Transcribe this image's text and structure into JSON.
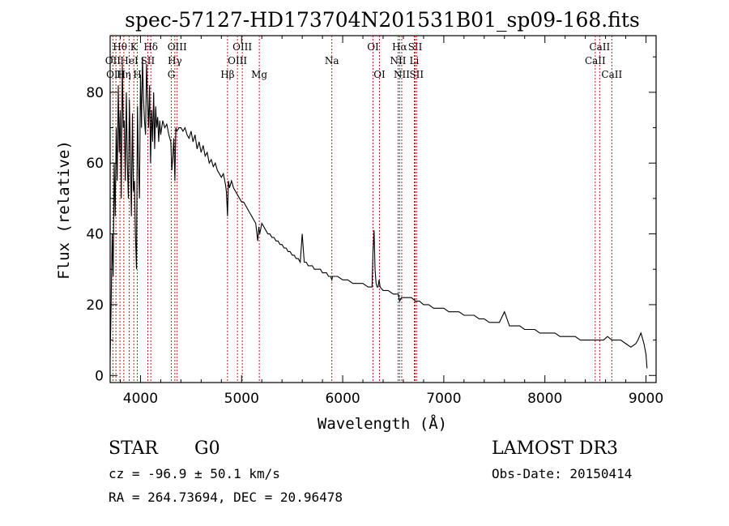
{
  "chart_data": {
    "type": "line",
    "title": "spec-57127-HD173704N201531B01_sp09-168.fits",
    "xlabel": "Wavelength (Å)",
    "ylabel": "Flux (relative)",
    "xlim": [
      3700,
      9100
    ],
    "ylim": [
      -2,
      96
    ],
    "xticks": [
      4000,
      5000,
      6000,
      7000,
      8000,
      9000
    ],
    "yticks": [
      0,
      20,
      40,
      60,
      80
    ],
    "grid": false,
    "series": [
      {
        "name": "flux",
        "x": [
          3700,
          3710,
          3720,
          3730,
          3740,
          3750,
          3760,
          3770,
          3780,
          3790,
          3800,
          3810,
          3820,
          3830,
          3840,
          3850,
          3860,
          3870,
          3880,
          3890,
          3900,
          3910,
          3920,
          3930,
          3940,
          3950,
          3960,
          3970,
          3980,
          3990,
          4000,
          4010,
          4020,
          4030,
          4040,
          4050,
          4060,
          4070,
          4080,
          4090,
          4100,
          4110,
          4120,
          4130,
          4140,
          4150,
          4160,
          4170,
          4180,
          4190,
          4200,
          4220,
          4240,
          4260,
          4280,
          4300,
          4310,
          4320,
          4330,
          4340,
          4350,
          4360,
          4380,
          4400,
          4420,
          4440,
          4460,
          4480,
          4500,
          4520,
          4540,
          4560,
          4580,
          4600,
          4620,
          4640,
          4660,
          4680,
          4700,
          4720,
          4740,
          4760,
          4780,
          4800,
          4820,
          4840,
          4850,
          4861,
          4870,
          4880,
          4900,
          4920,
          4940,
          4960,
          4980,
          5000,
          5020,
          5040,
          5060,
          5080,
          5100,
          5120,
          5140,
          5160,
          5170,
          5180,
          5200,
          5220,
          5240,
          5260,
          5280,
          5300,
          5320,
          5340,
          5360,
          5380,
          5400,
          5420,
          5440,
          5460,
          5480,
          5500,
          5520,
          5540,
          5560,
          5580,
          5600,
          5620,
          5640,
          5660,
          5680,
          5700,
          5720,
          5740,
          5760,
          5780,
          5800,
          5820,
          5840,
          5860,
          5880,
          5893,
          5900,
          5950,
          6000,
          6050,
          6100,
          6150,
          6200,
          6250,
          6290,
          6300,
          6310,
          6320,
          6330,
          6340,
          6350,
          6360,
          6370,
          6400,
          6450,
          6500,
          6550,
          6563,
          6580,
          6620,
          6680,
          6720,
          6760,
          6800,
          6850,
          6900,
          6950,
          7000,
          7050,
          7100,
          7150,
          7200,
          7250,
          7300,
          7350,
          7400,
          7450,
          7500,
          7550,
          7600,
          7650,
          7700,
          7750,
          7800,
          7850,
          7900,
          7950,
          8000,
          8050,
          8100,
          8150,
          8200,
          8250,
          8300,
          8350,
          8400,
          8450,
          8498,
          8542,
          8580,
          8620,
          8662,
          8700,
          8750,
          8800,
          8850,
          8900,
          8920,
          8950,
          8980,
          9000,
          9010
        ],
        "y": [
          5,
          20,
          40,
          28,
          60,
          45,
          70,
          55,
          82,
          63,
          75,
          50,
          88,
          70,
          72,
          55,
          80,
          60,
          50,
          78,
          62,
          45,
          74,
          52,
          55,
          40,
          30,
          76,
          60,
          50,
          85,
          70,
          90,
          78,
          72,
          68,
          88,
          78,
          70,
          82,
          60,
          75,
          66,
          80,
          64,
          76,
          70,
          73,
          66,
          72,
          68,
          72,
          70,
          71,
          68,
          66,
          58,
          62,
          67,
          55,
          70,
          69,
          70,
          70,
          69,
          70,
          68,
          67,
          69,
          66,
          68,
          64,
          66,
          63,
          65,
          62,
          63,
          60,
          61,
          59,
          60,
          58,
          57,
          56,
          57,
          54,
          52,
          45,
          55,
          53,
          55,
          53,
          52,
          51,
          50,
          49,
          49,
          48,
          47,
          46,
          45,
          44,
          43,
          38,
          42,
          40,
          43,
          42,
          41,
          40,
          40,
          39,
          39,
          38,
          38,
          37,
          37,
          36,
          36,
          35,
          35,
          34,
          34,
          33,
          33,
          32,
          40,
          32,
          32,
          31,
          31,
          31,
          30,
          30,
          30,
          30,
          29,
          29,
          29,
          28,
          28,
          27,
          28,
          28,
          27,
          27,
          26,
          26,
          26,
          25,
          25,
          35,
          41,
          30,
          26,
          25,
          25,
          27,
          25,
          24,
          24,
          23,
          23,
          21,
          22,
          22,
          22,
          21,
          21,
          20,
          20,
          19,
          19,
          19,
          18,
          18,
          18,
          17,
          17,
          17,
          16,
          16,
          15,
          15,
          15,
          18,
          14,
          14,
          14,
          13,
          13,
          13,
          12,
          12,
          12,
          12,
          11,
          11,
          11,
          11,
          10,
          10,
          10,
          10,
          10,
          10,
          11,
          10,
          10,
          10,
          9,
          8,
          9,
          10,
          12,
          9,
          6,
          2
        ]
      }
    ],
    "line_markers": [
      {
        "label": "Hθ",
        "wavelength": 3797,
        "row": 1
      },
      {
        "label": "OII",
        "wavelength": 3727,
        "row": 2
      },
      {
        "label": "OIII",
        "wavelength": 3757,
        "row": 3
      },
      {
        "label": "K",
        "wavelength": 3934,
        "row": 1
      },
      {
        "label": "HeI",
        "wavelength": 3889,
        "row": 2
      },
      {
        "label": "Hη",
        "wavelength": 3835,
        "row": 3
      },
      {
        "label": "Hδ",
        "wavelength": 4102,
        "row": 1
      },
      {
        "label": "SII",
        "wavelength": 4072,
        "row": 2
      },
      {
        "label": "H",
        "wavelength": 3969,
        "row": 3
      },
      {
        "label": "OIII",
        "wavelength": 4363,
        "row": 1
      },
      {
        "label": "Hγ",
        "wavelength": 4340,
        "row": 2
      },
      {
        "label": "G",
        "wavelength": 4305,
        "row": 3
      },
      {
        "label": "OIII",
        "wavelength": 5007,
        "row": 1
      },
      {
        "label": "OIII",
        "wavelength": 4959,
        "row": 2
      },
      {
        "label": "Hβ",
        "wavelength": 4861,
        "row": 3
      },
      {
        "label": "Mg",
        "wavelength": 5175,
        "row": 3
      },
      {
        "label": "Na",
        "wavelength": 5893,
        "row": 2
      },
      {
        "label": "OI",
        "wavelength": 6300,
        "row": 1
      },
      {
        "label": "OI",
        "wavelength": 6364,
        "row": 3
      },
      {
        "label": "Hα",
        "wavelength": 6563,
        "row": 1
      },
      {
        "label": "SII",
        "wavelength": 6717,
        "row": 1
      },
      {
        "label": "NII",
        "wavelength": 6548,
        "row": 2
      },
      {
        "label": "Li",
        "wavelength": 6708,
        "row": 2
      },
      {
        "label": "NII",
        "wavelength": 6584,
        "row": 3
      },
      {
        "label": "SII",
        "wavelength": 6731,
        "row": 3
      },
      {
        "label": "CaII",
        "wavelength": 8542,
        "row": 1
      },
      {
        "label": "CaII",
        "wavelength": 8498,
        "row": 2
      },
      {
        "label": "CaII",
        "wavelength": 8662,
        "row": 3
      }
    ]
  },
  "info": {
    "class_label": "STAR",
    "subclass": "G0",
    "survey": "LAMOST DR3",
    "redshift": "cz = -96.9 ± 50.1 km/s",
    "obs_date": "Obs-Date: 20150414",
    "coords": "RA = 264.73694, DEC =  20.96478"
  }
}
